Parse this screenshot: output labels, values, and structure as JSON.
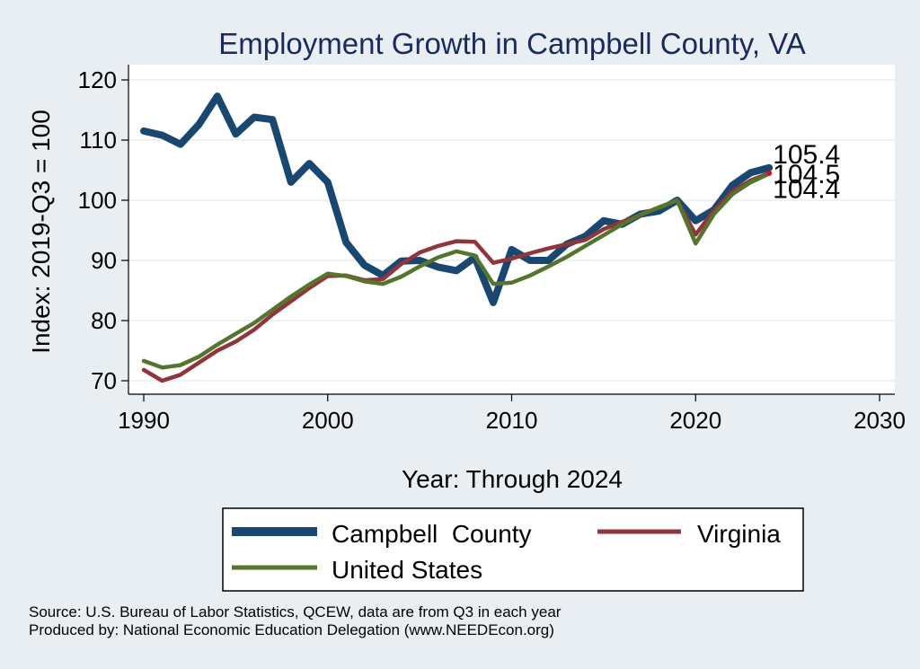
{
  "chart_data": {
    "type": "line",
    "title": "Employment Growth in Campbell County, VA",
    "xlabel": "Year: Through 2024",
    "ylabel": "Index: 2019-Q3 = 100",
    "xlim": [
      1990,
      2030
    ],
    "ylim": [
      68,
      122
    ],
    "xticks": [
      1990,
      2000,
      2010,
      2020,
      2030
    ],
    "yticks": [
      70,
      80,
      90,
      100,
      110,
      120
    ],
    "grid": true,
    "legend_position": "bottom",
    "x": [
      1990,
      1991,
      1992,
      1993,
      1994,
      1995,
      1996,
      1997,
      1998,
      1999,
      2000,
      2001,
      2002,
      2003,
      2004,
      2005,
      2006,
      2007,
      2008,
      2009,
      2010,
      2011,
      2012,
      2013,
      2014,
      2015,
      2016,
      2017,
      2018,
      2019,
      2020,
      2021,
      2022,
      2023,
      2024
    ],
    "series": [
      {
        "name": "Campbell  County",
        "color": "#1a476f",
        "values": [
          111.5,
          110.8,
          109.3,
          112.6,
          117.3,
          111.0,
          113.8,
          113.4,
          103.0,
          106.1,
          103.0,
          93.0,
          89.2,
          87.5,
          89.9,
          90.0,
          88.9,
          88.3,
          90.5,
          83.0,
          91.8,
          90.0,
          90.0,
          92.7,
          94.0,
          96.6,
          96.0,
          97.7,
          98.2,
          100.0,
          96.6,
          98.4,
          102.5,
          104.6,
          105.4
        ],
        "end_label": "105.4"
      },
      {
        "name": "Virginia",
        "color": "#90353b",
        "values": [
          71.8,
          70.0,
          71.0,
          73.0,
          75.0,
          76.5,
          78.5,
          81.0,
          83.2,
          85.4,
          87.4,
          87.5,
          86.7,
          86.9,
          89.4,
          91.3,
          92.4,
          93.2,
          93.1,
          89.6,
          90.3,
          91.2,
          92.0,
          92.7,
          93.4,
          95.2,
          96.4,
          97.5,
          98.8,
          100.0,
          94.3,
          98.3,
          101.5,
          103.3,
          104.5
        ],
        "end_label": "104.5"
      },
      {
        "name": "United States",
        "color": "#55752f",
        "values": [
          73.3,
          72.2,
          72.6,
          74.0,
          76.0,
          77.8,
          79.6,
          81.8,
          84.0,
          86.0,
          87.8,
          87.4,
          86.5,
          86.1,
          87.3,
          89.0,
          90.5,
          91.5,
          90.8,
          86.1,
          86.3,
          87.5,
          89.0,
          90.6,
          92.4,
          94.2,
          96.0,
          97.6,
          98.8,
          100.0,
          92.8,
          97.7,
          101.0,
          103.0,
          104.4
        ],
        "end_label": "104.4"
      }
    ]
  },
  "source": "Source: U.S. Bureau of Labor Statistics, QCEW, data are from Q3 in each year",
  "produced_by": "Produced by: National Economic Education Delegation (www.NEEDEcon.org)"
}
